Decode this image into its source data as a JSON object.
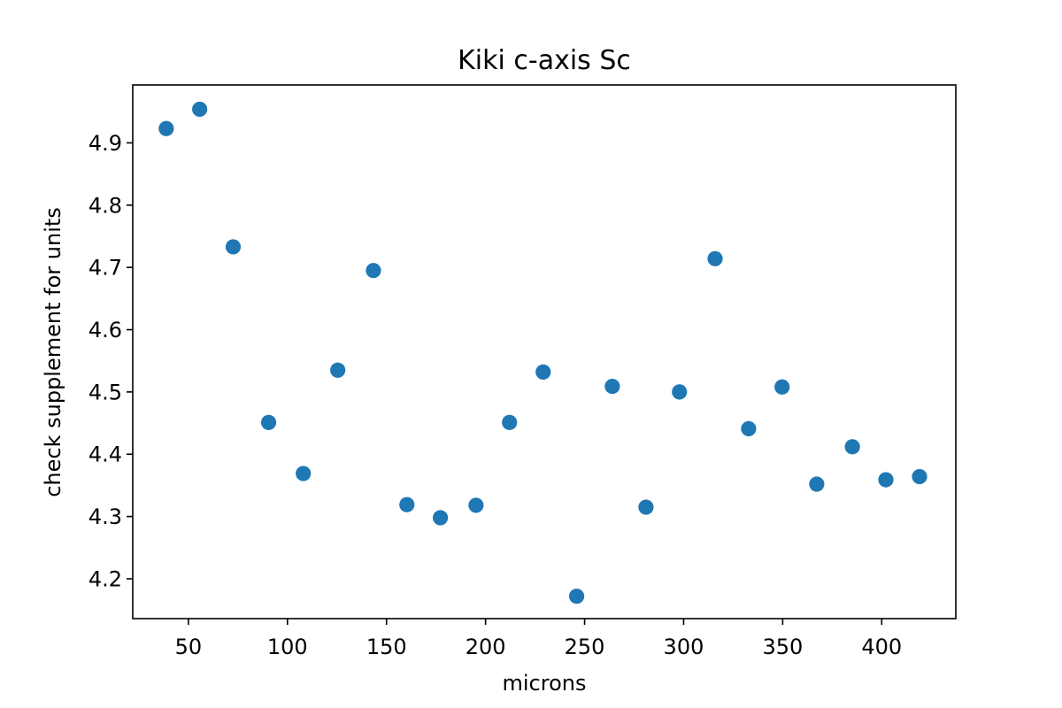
{
  "chart_data": {
    "type": "scatter",
    "title": "Kiki c-axis Sc",
    "xlabel": "microns",
    "ylabel": "check supplement for units",
    "xlim": [
      21.9,
      437.4
    ],
    "ylim": [
      4.136,
      4.993
    ],
    "x_ticks": [
      50,
      100,
      150,
      200,
      250,
      300,
      350,
      400
    ],
    "x_tick_labels": [
      "50",
      "100",
      "150",
      "200",
      "250",
      "300",
      "350",
      "400"
    ],
    "y_ticks": [
      4.2,
      4.3,
      4.4,
      4.5,
      4.6,
      4.7,
      4.8,
      4.9
    ],
    "y_tick_labels": [
      "4.2",
      "4.3",
      "4.4",
      "4.5",
      "4.6",
      "4.7",
      "4.8",
      "4.9"
    ],
    "grid": false,
    "color": "#1f77b4",
    "points": [
      {
        "x": 38.8,
        "y": 4.923
      },
      {
        "x": 55.7,
        "y": 4.954
      },
      {
        "x": 72.6,
        "y": 4.733
      },
      {
        "x": 90.5,
        "y": 4.451
      },
      {
        "x": 108.0,
        "y": 4.369
      },
      {
        "x": 125.4,
        "y": 4.535
      },
      {
        "x": 143.4,
        "y": 4.695
      },
      {
        "x": 160.3,
        "y": 4.319
      },
      {
        "x": 177.2,
        "y": 4.298
      },
      {
        "x": 195.2,
        "y": 4.318
      },
      {
        "x": 212.1,
        "y": 4.451
      },
      {
        "x": 229.1,
        "y": 4.532
      },
      {
        "x": 246.0,
        "y": 4.172
      },
      {
        "x": 264.0,
        "y": 4.509
      },
      {
        "x": 281.0,
        "y": 4.315
      },
      {
        "x": 297.9,
        "y": 4.5
      },
      {
        "x": 315.9,
        "y": 4.714
      },
      {
        "x": 332.8,
        "y": 4.441
      },
      {
        "x": 349.7,
        "y": 4.508
      },
      {
        "x": 367.2,
        "y": 4.352
      },
      {
        "x": 385.2,
        "y": 4.412
      },
      {
        "x": 402.1,
        "y": 4.359
      },
      {
        "x": 419.1,
        "y": 4.364
      }
    ]
  }
}
